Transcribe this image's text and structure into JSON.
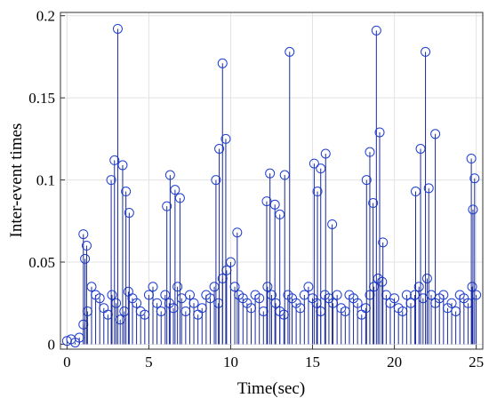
{
  "chart_data": {
    "type": "stem",
    "xlabel": "Time(sec)",
    "ylabel": "Inter-event times",
    "color": "#1f3fd0",
    "xlim": [
      -0.4,
      25.4
    ],
    "ylim": [
      -0.003,
      0.202
    ],
    "xticks": [
      0,
      5,
      10,
      15,
      20,
      25
    ],
    "yticks": [
      0,
      0.05,
      0.1,
      0.15,
      0.2
    ],
    "grid": true,
    "x": [
      0,
      0.25,
      0.5,
      0.75,
      1,
      1.25,
      1.5,
      1.75,
      2,
      2.25,
      2.5,
      2.75,
      3,
      3.25,
      3.5,
      3.75,
      4,
      4.25,
      4.5,
      4.75,
      5,
      5.25,
      5.5,
      5.75,
      6,
      6.25,
      6.5,
      6.75,
      7,
      7.25,
      7.5,
      7.75,
      8,
      8.25,
      8.5,
      8.75,
      9,
      9.25,
      9.5,
      9.75,
      10,
      10.25,
      10.5,
      10.75,
      11,
      11.25,
      11.5,
      11.75,
      12,
      12.25,
      12.5,
      12.75,
      13,
      13.25,
      13.5,
      13.75,
      14,
      14.25,
      14.5,
      14.75,
      15,
      15.25,
      15.5,
      15.75,
      16,
      16.25,
      16.5,
      16.75,
      17,
      17.25,
      17.5,
      17.75,
      18,
      18.25,
      18.5,
      18.75,
      19,
      19.25,
      19.5,
      19.75,
      20,
      20.25,
      20.5,
      20.75,
      21,
      21.25,
      21.5,
      21.75,
      22,
      22.25,
      22.5,
      22.75,
      23,
      23.25,
      23.5,
      23.75,
      24,
      24.25,
      24.5,
      24.75,
      25,
      3.1,
      2.9,
      2.7,
      3.4,
      3.6,
      3.8,
      6.1,
      6.3,
      6.6,
      6.9,
      9.1,
      9.3,
      9.5,
      9.7,
      10.4,
      12.2,
      12.4,
      12.7,
      13.0,
      13.3,
      13.6,
      15.1,
      15.3,
      15.5,
      15.8,
      16.2,
      18.3,
      18.5,
      18.7,
      18.9,
      19.1,
      19.3,
      21.3,
      21.6,
      21.9,
      22.1,
      22.5,
      24.7,
      24.9,
      24.8,
      1.0,
      1.1,
      1.2
    ],
    "values": [
      0.002,
      0.003,
      0.001,
      0.004,
      0.012,
      0.02,
      0.035,
      0.03,
      0.028,
      0.022,
      0.018,
      0.03,
      0.025,
      0.015,
      0.02,
      0.032,
      0.028,
      0.025,
      0.02,
      0.018,
      0.03,
      0.035,
      0.025,
      0.02,
      0.03,
      0.025,
      0.022,
      0.035,
      0.028,
      0.02,
      0.03,
      0.025,
      0.018,
      0.022,
      0.03,
      0.028,
      0.035,
      0.025,
      0.04,
      0.045,
      0.05,
      0.035,
      0.03,
      0.028,
      0.025,
      0.022,
      0.03,
      0.028,
      0.02,
      0.035,
      0.03,
      0.025,
      0.02,
      0.018,
      0.03,
      0.028,
      0.025,
      0.022,
      0.03,
      0.035,
      0.028,
      0.025,
      0.02,
      0.03,
      0.028,
      0.025,
      0.03,
      0.022,
      0.02,
      0.03,
      0.028,
      0.025,
      0.018,
      0.022,
      0.03,
      0.035,
      0.04,
      0.038,
      0.03,
      0.025,
      0.028,
      0.022,
      0.02,
      0.03,
      0.025,
      0.03,
      0.035,
      0.028,
      0.04,
      0.03,
      0.025,
      0.028,
      0.03,
      0.022,
      0.025,
      0.02,
      0.03,
      0.028,
      0.025,
      0.035,
      0.03,
      0.192,
      0.112,
      0.1,
      0.109,
      0.093,
      0.08,
      0.084,
      0.103,
      0.094,
      0.089,
      0.1,
      0.119,
      0.171,
      0.125,
      0.068,
      0.087,
      0.104,
      0.085,
      0.079,
      0.103,
      0.178,
      0.11,
      0.093,
      0.107,
      0.116,
      0.073,
      0.1,
      0.117,
      0.086,
      0.191,
      0.129,
      0.062,
      0.093,
      0.119,
      0.178,
      0.095,
      0.128,
      0.113,
      0.101,
      0.082,
      0.067,
      0.052,
      0.06
    ]
  }
}
